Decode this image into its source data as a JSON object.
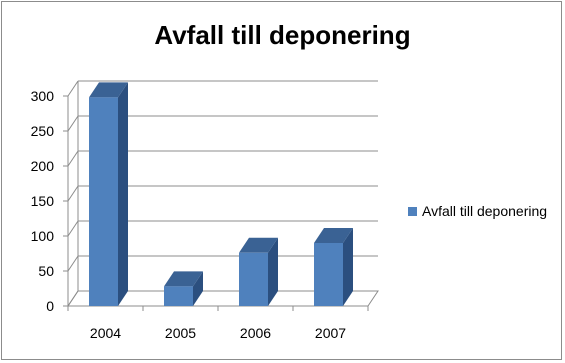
{
  "chart_data": {
    "type": "bar",
    "title": "Avfall till deponering",
    "categories": [
      "2004",
      "2005",
      "2006",
      "2007"
    ],
    "series": [
      {
        "name": "Avfall till deponering",
        "values": [
          298,
          28,
          76,
          90
        ]
      }
    ],
    "ylim": [
      0,
      300
    ],
    "yticks": [
      "0",
      "50",
      "100",
      "150",
      "200",
      "250",
      "300"
    ],
    "grid": true,
    "legend_position": "right",
    "colors": {
      "bar_front": "#4f81bd",
      "bar_side": "#2b4f7f",
      "bar_top": "#3a6294",
      "grid": "#8c8c8c"
    }
  }
}
